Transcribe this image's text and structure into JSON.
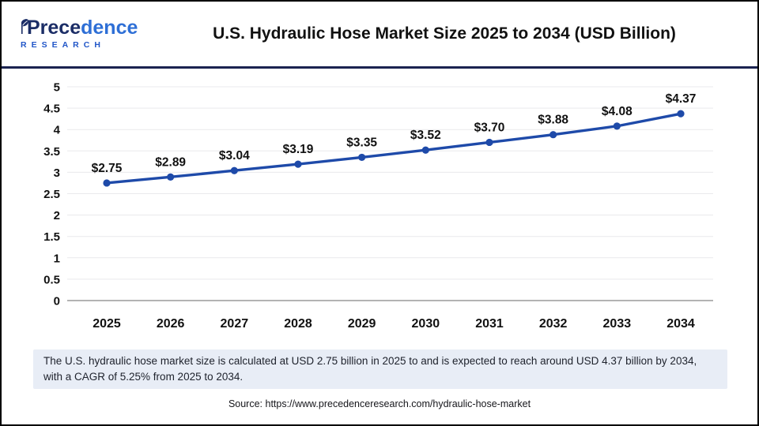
{
  "header": {
    "logo": {
      "brand_part1": "Prece",
      "brand_part2": "dence",
      "subtitle": "RESEARCH"
    },
    "title": "U.S. Hydraulic Hose Market Size 2025 to 2034 (USD Billion)"
  },
  "chart_data": {
    "type": "line",
    "title": "U.S. Hydraulic Hose Market Size 2025 to 2034 (USD Billion)",
    "categories": [
      "2025",
      "2026",
      "2027",
      "2028",
      "2029",
      "2030",
      "2031",
      "2032",
      "2033",
      "2034"
    ],
    "values": [
      2.75,
      2.89,
      3.04,
      3.19,
      3.35,
      3.52,
      3.7,
      3.88,
      4.08,
      4.37
    ],
    "data_labels": [
      "$2.75",
      "$2.89",
      "$3.04",
      "$3.19",
      "$3.35",
      "$3.52",
      "$3.70",
      "$3.88",
      "$4.08",
      "$4.37"
    ],
    "unit": "USD Billion",
    "xlabel": "",
    "ylabel": "",
    "ylim": [
      0,
      5
    ],
    "ytick_step": 0.5,
    "grid": true,
    "legend": "none",
    "line_color": "#1e4aa9",
    "marker_color": "#1e4aa9"
  },
  "note": {
    "text": "The U.S. hydraulic hose market size is calculated at USD 2.75 billion in 2025 to and is expected to reach around USD 4.37 billion by 2034, with a CAGR of 5.25% from 2025 to 2034."
  },
  "source": {
    "text": "Source: https://www.precedenceresearch.com/hydraulic-hose-market"
  },
  "colors": {
    "accent_navy": "#1b2350",
    "logo_navy": "#1b2d66",
    "logo_blue": "#2e6fd6",
    "research_blue": "#2156c8",
    "note_bg": "#e8edf6",
    "grid_line": "#e9e9ec",
    "axis_line": "#b3b3b3",
    "text": "#111111"
  }
}
